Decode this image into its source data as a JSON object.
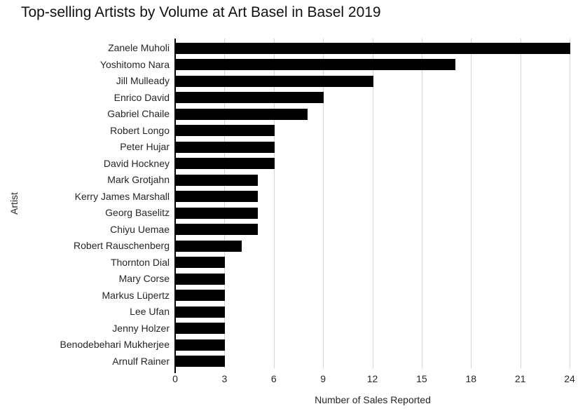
{
  "chart_data": {
    "type": "bar",
    "orientation": "horizontal",
    "title": "Top-selling Artists by Volume at Art Basel in Basel 2019",
    "xlabel": "Number of Sales Reported",
    "ylabel": "Artist",
    "categories": [
      "Zanele Muholi",
      "Yoshitomo Nara",
      "Jill Mulleady",
      "Enrico David",
      "Gabriel Chaile",
      "Robert Longo",
      "Peter Hujar",
      "David Hockney",
      "Mark Grotjahn",
      "Kerry James Marshall",
      "Georg Baselitz",
      "Chiyu Uemae",
      "Robert Rauschenberg",
      "Thornton Dial",
      "Mary Corse",
      "Markus Lüpertz",
      "Lee Ufan",
      "Jenny Holzer",
      "Benodebehari Mukherjee",
      "Arnulf Rainer"
    ],
    "values": [
      24,
      17,
      12,
      9,
      8,
      6,
      6,
      6,
      5,
      5,
      5,
      5,
      4,
      3,
      3,
      3,
      3,
      3,
      3,
      3
    ],
    "xlim": [
      0,
      24
    ],
    "xticks": [
      0,
      3,
      6,
      9,
      12,
      15,
      18,
      21,
      24
    ],
    "grid": "vertical-only",
    "legend": "none"
  },
  "colors": {
    "background": "#ffffff",
    "bar": "#000000",
    "gridline": "#d4d4d4",
    "axis_line": "#000000",
    "text": "#262626",
    "title_text": "#111111"
  }
}
